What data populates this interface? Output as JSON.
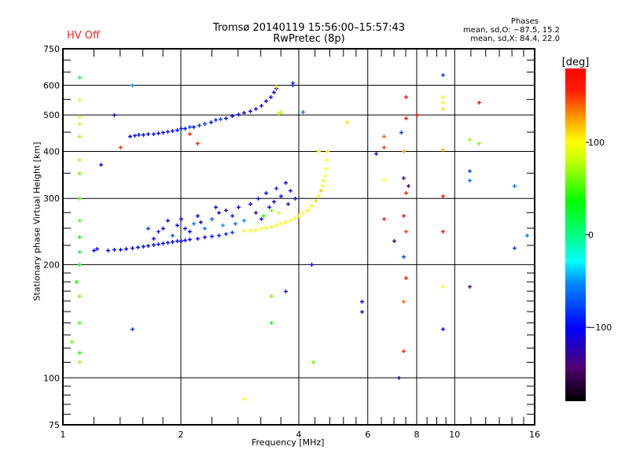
{
  "header": {
    "status": "HV Off",
    "title_line1": "Tromsø 20140119 15:56:00–15:57:43",
    "title_line2": "RwPretec (8p)",
    "phases_title": "Phases",
    "phases_o": "mean, sd,O: −87.5, 15.2",
    "phases_x": "mean, sd,X:  84.4, 22.0"
  },
  "colors": {
    "axes": "#000000",
    "hv_off": "#ff2020"
  },
  "chart_data": {
    "type": "scatter",
    "title": "Tromsø 20140119 15:56:00–15:57:43",
    "xlabel": "Frequency [MHz]",
    "ylabel": "Stationary phase Virtual Height [km]",
    "xscale": "log",
    "yscale": "log",
    "xlim": [
      1,
      16
    ],
    "ylim": [
      75,
      750
    ],
    "xticks": [
      {
        "v": 1,
        "label": "1"
      },
      {
        "v": 2,
        "label": "2"
      },
      {
        "v": 4,
        "label": "4"
      },
      {
        "v": 6,
        "label": "6"
      },
      {
        "v": 8,
        "label": "8"
      },
      {
        "v": 10,
        "label": "10"
      },
      {
        "v": 16,
        "label": "16"
      }
    ],
    "yticks": [
      {
        "v": 75,
        "label": "75"
      },
      {
        "v": 100,
        "label": "100"
      },
      {
        "v": 200,
        "label": "200"
      },
      {
        "v": 300,
        "label": "300"
      },
      {
        "v": 400,
        "label": "400"
      },
      {
        "v": 500,
        "label": "500"
      },
      {
        "v": 600,
        "label": "600"
      },
      {
        "v": 750,
        "label": "750"
      }
    ],
    "xgrid": [
      2,
      4,
      6,
      8,
      10
    ],
    "ygrid": [
      100,
      200,
      300,
      400,
      500,
      600
    ],
    "colorbar": {
      "label": "[deg]",
      "range": [
        -180,
        180
      ],
      "ticks": [
        {
          "v": 100,
          "label": "100"
        },
        {
          "v": 0,
          "label": "0"
        },
        {
          "v": -100,
          "label": "−100"
        }
      ]
    },
    "point_fields": [
      "frequency_MHz",
      "height_km",
      "phase_deg"
    ],
    "points": [
      [
        1.48,
        440,
        -100
      ],
      [
        1.52,
        441,
        -100
      ],
      [
        1.56,
        443,
        -100
      ],
      [
        1.6,
        444,
        -105
      ],
      [
        1.65,
        445,
        -100
      ],
      [
        1.7,
        446,
        -100
      ],
      [
        1.75,
        448,
        -100
      ],
      [
        1.8,
        450,
        -100
      ],
      [
        1.85,
        452,
        -95
      ],
      [
        1.9,
        454,
        -100
      ],
      [
        1.95,
        457,
        -100
      ],
      [
        2.0,
        460,
        -90
      ],
      [
        2.05,
        462,
        -100
      ],
      [
        2.1,
        465,
        -80
      ],
      [
        2.15,
        466,
        -100
      ],
      [
        2.22,
        470,
        -85
      ],
      [
        2.3,
        475,
        -80
      ],
      [
        2.38,
        480,
        -100
      ],
      [
        2.45,
        485,
        -85
      ],
      [
        2.52,
        488,
        -80
      ],
      [
        2.6,
        492,
        -100
      ],
      [
        2.7,
        497,
        -100
      ],
      [
        2.8,
        502,
        -95
      ],
      [
        2.9,
        508,
        -120
      ],
      [
        3.0,
        512,
        -110
      ],
      [
        3.1,
        520,
        -100
      ],
      [
        3.2,
        530,
        -105
      ],
      [
        3.3,
        545,
        -100
      ],
      [
        3.38,
        560,
        -110
      ],
      [
        3.45,
        575,
        -100
      ],
      [
        3.5,
        590,
        -100
      ],
      [
        3.55,
        505,
        80
      ],
      [
        3.6,
        510,
        80
      ],
      [
        3.5,
        595,
        110
      ],
      [
        1.2,
        218,
        -100
      ],
      [
        1.22,
        221,
        -100
      ],
      [
        1.3,
        219,
        -100
      ],
      [
        1.35,
        220,
        -100
      ],
      [
        1.4,
        220,
        -100
      ],
      [
        1.45,
        221,
        -100
      ],
      [
        1.5,
        222,
        -100
      ],
      [
        1.55,
        223,
        -100
      ],
      [
        1.6,
        224,
        -100
      ],
      [
        1.65,
        225,
        -100
      ],
      [
        1.7,
        226,
        -100
      ],
      [
        1.75,
        227,
        -100
      ],
      [
        1.8,
        228,
        -100
      ],
      [
        1.85,
        229,
        -100
      ],
      [
        1.9,
        230,
        -100
      ],
      [
        1.95,
        231,
        -100
      ],
      [
        2.0,
        232,
        -100
      ],
      [
        2.05,
        233,
        -100
      ],
      [
        2.1,
        234,
        -100
      ],
      [
        2.2,
        235,
        -100
      ],
      [
        2.3,
        237,
        -100
      ],
      [
        2.4,
        238,
        -95
      ],
      [
        2.5,
        240,
        -90
      ],
      [
        2.6,
        242,
        -90
      ],
      [
        2.7,
        244,
        -80
      ],
      [
        2.9,
        246,
        100
      ],
      [
        3.0,
        247,
        100
      ],
      [
        3.1,
        248,
        95
      ],
      [
        3.2,
        250,
        100
      ],
      [
        3.3,
        251,
        100
      ],
      [
        3.4,
        253,
        105
      ],
      [
        3.5,
        255,
        100
      ],
      [
        3.6,
        257,
        100
      ],
      [
        3.7,
        260,
        100
      ],
      [
        3.8,
        263,
        95
      ],
      [
        3.9,
        266,
        100
      ],
      [
        4.0,
        270,
        100
      ],
      [
        4.1,
        275,
        100
      ],
      [
        4.2,
        280,
        105
      ],
      [
        4.3,
        288,
        100
      ],
      [
        4.4,
        296,
        110
      ],
      [
        4.5,
        305,
        100
      ],
      [
        4.55,
        315,
        120
      ],
      [
        4.6,
        325,
        100
      ],
      [
        4.62,
        335,
        90
      ],
      [
        4.65,
        345,
        100
      ],
      [
        4.67,
        360,
        100
      ],
      [
        4.7,
        380,
        100
      ],
      [
        4.72,
        400,
        110
      ],
      [
        1.7,
        235,
        -100
      ],
      [
        1.75,
        245,
        -90
      ],
      [
        1.8,
        250,
        -100
      ],
      [
        1.85,
        262,
        -110
      ],
      [
        1.9,
        240,
        -70
      ],
      [
        1.95,
        255,
        -100
      ],
      [
        2.0,
        265,
        -100
      ],
      [
        2.05,
        250,
        -100
      ],
      [
        2.1,
        245,
        -100
      ],
      [
        2.15,
        258,
        -60
      ],
      [
        2.2,
        270,
        -100
      ],
      [
        2.3,
        250,
        -60
      ],
      [
        2.4,
        265,
        -70
      ],
      [
        2.5,
        275,
        -100
      ],
      [
        2.55,
        255,
        -50
      ],
      [
        2.6,
        280,
        -120
      ],
      [
        2.7,
        270,
        -90
      ],
      [
        2.75,
        258,
        -60
      ],
      [
        2.8,
        285,
        -110
      ],
      [
        2.9,
        262,
        -50
      ],
      [
        3.0,
        290,
        -100
      ],
      [
        3.1,
        275,
        -130
      ],
      [
        3.15,
        300,
        -100
      ],
      [
        3.2,
        265,
        -100
      ],
      [
        3.3,
        310,
        -100
      ],
      [
        3.35,
        285,
        -110
      ],
      [
        3.45,
        295,
        -100
      ],
      [
        3.5,
        320,
        -90
      ],
      [
        3.55,
        275,
        80
      ],
      [
        3.6,
        305,
        -100
      ],
      [
        3.7,
        330,
        -110
      ],
      [
        3.75,
        290,
        -120
      ],
      [
        3.8,
        315,
        -100
      ],
      [
        3.9,
        300,
        -100
      ],
      [
        2.25,
        260,
        -120
      ],
      [
        2.45,
        285,
        -100
      ],
      [
        3.25,
        270,
        40
      ],
      [
        3.4,
        280,
        60
      ],
      [
        1.65,
        250,
        -80
      ],
      [
        1.1,
        630,
        20
      ],
      [
        1.1,
        550,
        90
      ],
      [
        1.1,
        495,
        80
      ],
      [
        1.1,
        475,
        80
      ],
      [
        1.1,
        440,
        70
      ],
      [
        1.1,
        380,
        70
      ],
      [
        1.1,
        350,
        60
      ],
      [
        1.1,
        300,
        50
      ],
      [
        1.1,
        262,
        50
      ],
      [
        1.1,
        237,
        40
      ],
      [
        1.1,
        216,
        20
      ],
      [
        1.1,
        200,
        30
      ],
      [
        1.08,
        180,
        40
      ],
      [
        1.1,
        165,
        60
      ],
      [
        1.1,
        140,
        50
      ],
      [
        1.05,
        125,
        60
      ],
      [
        1.1,
        117,
        40
      ],
      [
        1.1,
        110,
        70
      ],
      [
        1.5,
        600,
        -50
      ],
      [
        1.5,
        135,
        -80
      ],
      [
        1.35,
        500,
        -130
      ],
      [
        1.25,
        370,
        -100
      ],
      [
        2.9,
        88,
        100
      ],
      [
        4.35,
        110,
        60
      ],
      [
        3.4,
        165,
        60
      ],
      [
        3.4,
        140,
        40
      ],
      [
        3.7,
        170,
        -130
      ],
      [
        4.3,
        200,
        -110
      ],
      [
        3.85,
        600,
        -90
      ],
      [
        3.85,
        610,
        -80
      ],
      [
        4.1,
        510,
        -60
      ],
      [
        5.8,
        150,
        -100
      ],
      [
        5.8,
        160,
        -100
      ],
      [
        6.3,
        395,
        -120
      ],
      [
        6.6,
        440,
        140
      ],
      [
        6.6,
        410,
        150
      ],
      [
        6.6,
        335,
        100
      ],
      [
        6.6,
        265,
        160
      ],
      [
        7.0,
        232,
        -150
      ],
      [
        7.2,
        100,
        -130
      ],
      [
        7.3,
        450,
        -80
      ],
      [
        7.4,
        340,
        -140
      ],
      [
        7.4,
        270,
        170
      ],
      [
        7.4,
        210,
        -80
      ],
      [
        7.4,
        160,
        140
      ],
      [
        7.4,
        118,
        160
      ],
      [
        7.5,
        560,
        170
      ],
      [
        7.5,
        490,
        170
      ],
      [
        7.5,
        310,
        160
      ],
      [
        7.5,
        185,
        170
      ],
      [
        7.6,
        325,
        -140
      ],
      [
        7.5,
        245,
        150
      ],
      [
        7.4,
        400,
        130
      ],
      [
        9.3,
        640,
        -80
      ],
      [
        9.3,
        560,
        90
      ],
      [
        9.3,
        540,
        100
      ],
      [
        9.3,
        520,
        110
      ],
      [
        9.3,
        405,
        120
      ],
      [
        9.3,
        305,
        160
      ],
      [
        9.3,
        245,
        170
      ],
      [
        9.3,
        175,
        100
      ],
      [
        9.3,
        135,
        -100
      ],
      [
        10.9,
        355,
        -80
      ],
      [
        10.9,
        335,
        -60
      ],
      [
        10.9,
        430,
        70
      ],
      [
        10.9,
        175,
        -140
      ],
      [
        11.5,
        540,
        170
      ],
      [
        11.5,
        420,
        60
      ],
      [
        14.2,
        325,
        -60
      ],
      [
        14.2,
        222,
        -80
      ],
      [
        15.3,
        240,
        -60
      ],
      [
        8,
        500,
        170
      ],
      [
        2.2,
        420,
        160
      ],
      [
        1.4,
        410,
        150
      ],
      [
        2.1,
        445,
        160
      ],
      [
        5.3,
        480,
        110
      ],
      [
        4.5,
        400,
        80
      ]
    ]
  }
}
